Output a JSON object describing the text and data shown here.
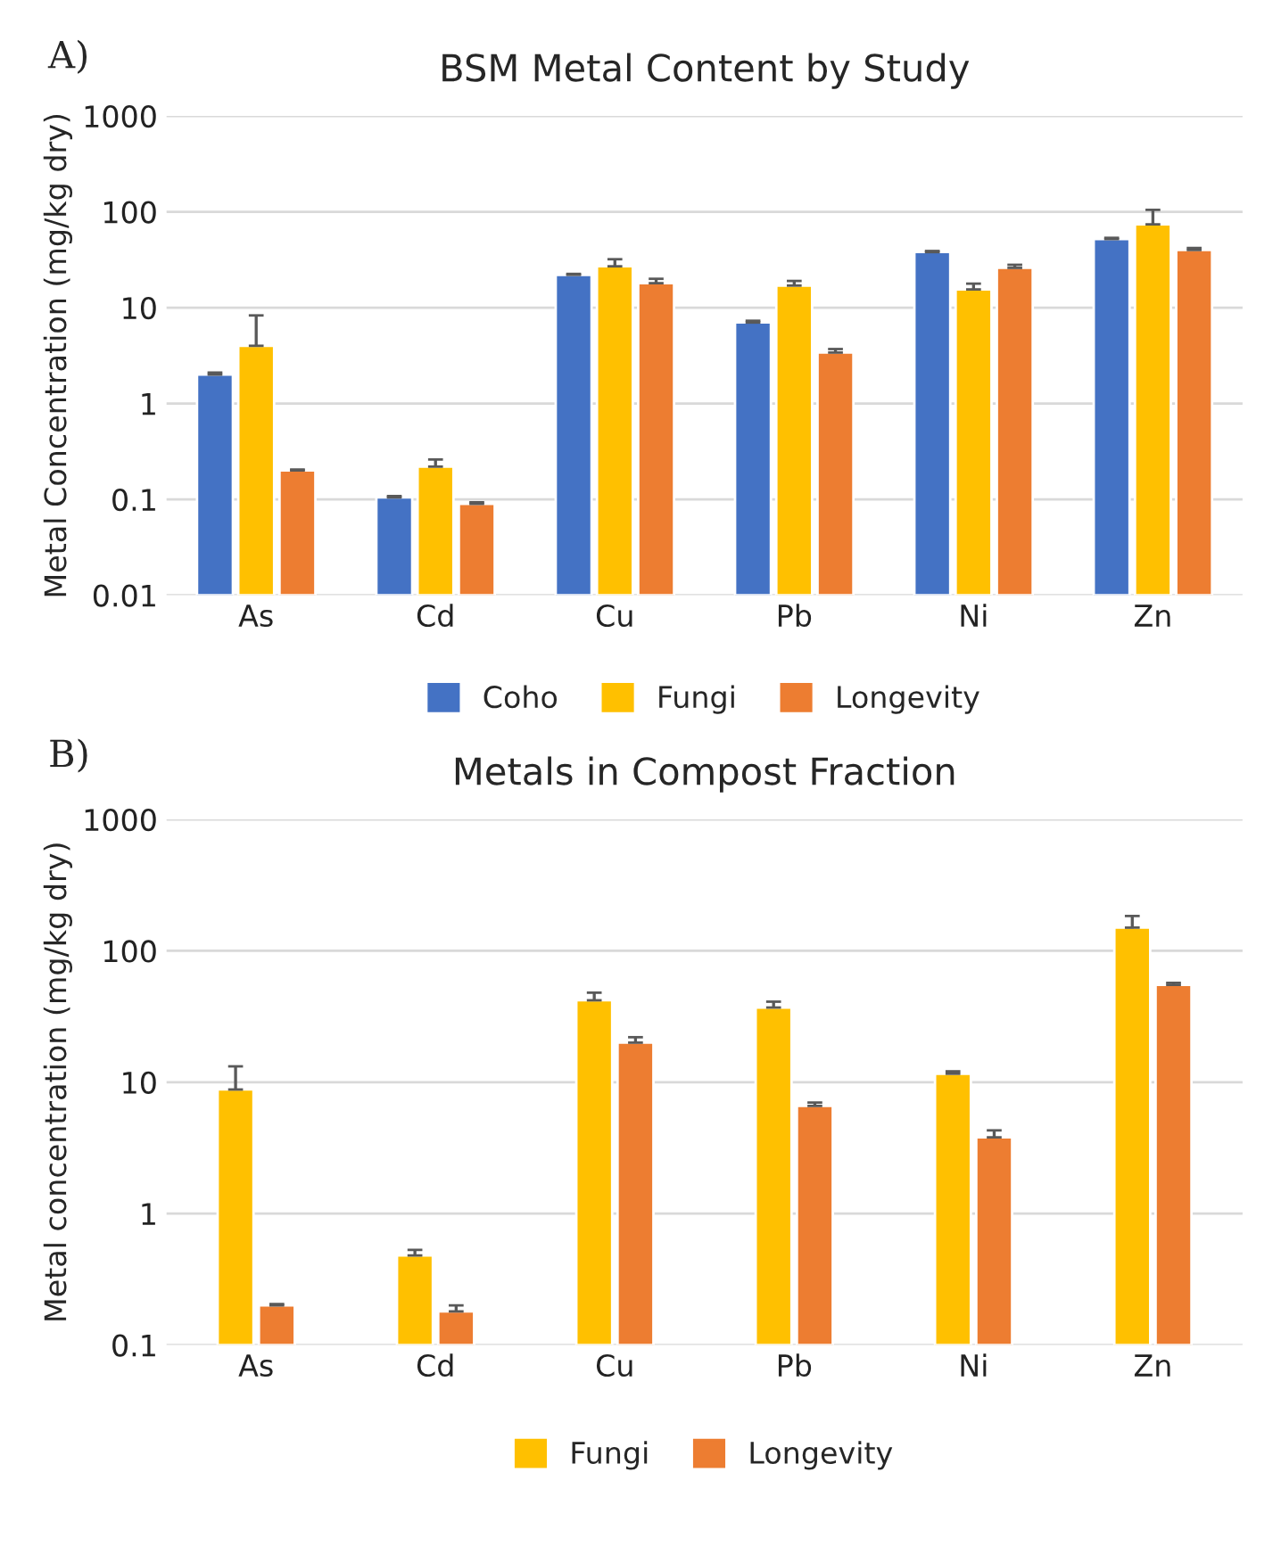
{
  "chart_data": [
    {
      "type": "bar",
      "title": "BSM Metal Content by Study",
      "annotations": [
        "A)"
      ],
      "ylabel": "Metal Concentration (mg/kg dry)",
      "categories": [
        "As",
        "Cd",
        "Cu",
        "Pb",
        "Ni",
        "Zn"
      ],
      "log": true,
      "ylim": [
        0.01,
        1000
      ],
      "yticks": [
        0.01,
        0.1,
        1,
        10,
        100,
        1000
      ],
      "grid": "y",
      "legend": "bottom",
      "series": [
        {
          "name": "Coho",
          "color": "#4472c4",
          "values": [
            2.0,
            0.105,
            22,
            7.0,
            38,
            52
          ],
          "errors": [
            0.1,
            0.003,
            0.5,
            0.3,
            1,
            1.5
          ]
        },
        {
          "name": "Fungi",
          "color": "#ffc000",
          "values": [
            4.0,
            0.22,
            27,
            17,
            15.5,
            74
          ],
          "errors": [
            4.3,
            0.04,
            5,
            2,
            2.3,
            31
          ]
        },
        {
          "name": "Longevity",
          "color": "#ed7d31",
          "values": [
            0.2,
            0.09,
            18,
            3.4,
            26,
            40
          ],
          "errors": [
            0.005,
            0.003,
            2,
            0.3,
            2,
            2
          ]
        }
      ]
    },
    {
      "type": "bar",
      "title": "Metals in Compost Fraction",
      "annotations": [
        "B)"
      ],
      "ylabel": "Metal concentration (mg/kg dry)",
      "categories": [
        "As",
        "Cd",
        "Cu",
        "Pb",
        "Ni",
        "Zn"
      ],
      "log": true,
      "ylim": [
        0.1,
        1000
      ],
      "yticks": [
        0.1,
        1,
        10,
        100,
        1000
      ],
      "grid": "y",
      "legend": "bottom",
      "series": [
        {
          "name": "Fungi",
          "color": "#ffc000",
          "values": [
            8.8,
            0.48,
            42,
            37,
            11.6,
            150
          ],
          "errors": [
            4.4,
            0.05,
            6,
            4,
            0.5,
            34
          ]
        },
        {
          "name": "Longevity",
          "color": "#ed7d31",
          "values": [
            0.2,
            0.18,
            20,
            6.6,
            3.8,
            55
          ],
          "errors": [
            0.005,
            0.02,
            2,
            0.4,
            0.5,
            2
          ]
        }
      ]
    }
  ]
}
